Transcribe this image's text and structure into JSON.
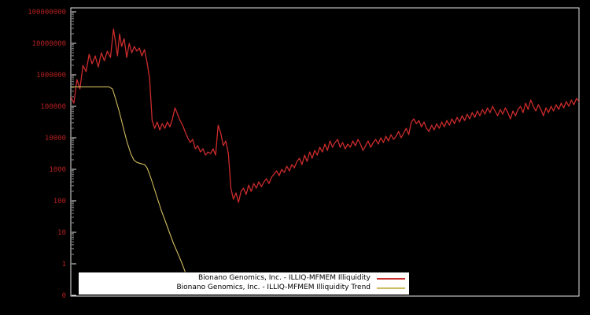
{
  "window": {
    "background": "#000000"
  },
  "legend": {
    "background": "#ffffff",
    "text_color": "#000000",
    "items": [
      {
        "label": "Bionano Genomics, Inc. - ILLIQ-MFMEM Illiquidity",
        "color": "#cc2b2b"
      },
      {
        "label": "Bionano Genomics, Inc. - ILLIQ-MFMEM Illiquidity Trend",
        "color": "#cfbc5e"
      }
    ]
  },
  "chart_data": {
    "type": "line",
    "title": "",
    "xlabel": "",
    "ylabel": "",
    "y_scale": "log10",
    "grid": false,
    "border_color": "#e8e8e8",
    "y_axis": {
      "label_color": "#b42020",
      "ticks": [
        {
          "label": "100000000",
          "log": 8
        },
        {
          "label": "10000000",
          "log": 7
        },
        {
          "label": "1000000",
          "log": 6
        },
        {
          "label": "100000",
          "log": 5
        },
        {
          "label": "10000",
          "log": 4
        },
        {
          "label": "1000",
          "log": 3
        },
        {
          "label": "100",
          "log": 2
        },
        {
          "label": "10",
          "log": 1
        },
        {
          "label": "1",
          "log": 0
        },
        {
          "label": "0",
          "log": null
        }
      ]
    },
    "x_axis": {
      "ticks": []
    },
    "series": [
      {
        "name": "Bionano Genomics, Inc. - ILLIQ-MFMEM Illiquidity",
        "color": "#cc2b2b",
        "width": 1.3,
        "points_xfrac_log10y": [
          [
            0.0,
            5.3
          ],
          [
            0.006,
            5.1
          ],
          [
            0.012,
            5.85
          ],
          [
            0.018,
            5.55
          ],
          [
            0.024,
            6.3
          ],
          [
            0.03,
            6.1
          ],
          [
            0.036,
            6.65
          ],
          [
            0.042,
            6.35
          ],
          [
            0.048,
            6.6
          ],
          [
            0.054,
            6.25
          ],
          [
            0.06,
            6.7
          ],
          [
            0.066,
            6.45
          ],
          [
            0.072,
            6.75
          ],
          [
            0.078,
            6.55
          ],
          [
            0.084,
            7.45
          ],
          [
            0.088,
            7.05
          ],
          [
            0.092,
            6.6
          ],
          [
            0.096,
            7.3
          ],
          [
            0.1,
            6.9
          ],
          [
            0.105,
            7.15
          ],
          [
            0.11,
            6.55
          ],
          [
            0.115,
            7.0
          ],
          [
            0.12,
            6.7
          ],
          [
            0.125,
            6.9
          ],
          [
            0.13,
            6.75
          ],
          [
            0.135,
            6.85
          ],
          [
            0.14,
            6.6
          ],
          [
            0.145,
            6.8
          ],
          [
            0.15,
            6.4
          ],
          [
            0.155,
            5.9
          ],
          [
            0.16,
            4.55
          ],
          [
            0.165,
            4.3
          ],
          [
            0.17,
            4.5
          ],
          [
            0.175,
            4.25
          ],
          [
            0.18,
            4.45
          ],
          [
            0.185,
            4.3
          ],
          [
            0.19,
            4.5
          ],
          [
            0.195,
            4.35
          ],
          [
            0.2,
            4.6
          ],
          [
            0.205,
            4.95
          ],
          [
            0.21,
            4.75
          ],
          [
            0.215,
            4.55
          ],
          [
            0.22,
            4.4
          ],
          [
            0.225,
            4.2
          ],
          [
            0.23,
            4.0
          ],
          [
            0.235,
            3.85
          ],
          [
            0.24,
            3.95
          ],
          [
            0.245,
            3.65
          ],
          [
            0.25,
            3.75
          ],
          [
            0.255,
            3.55
          ],
          [
            0.26,
            3.65
          ],
          [
            0.265,
            3.45
          ],
          [
            0.27,
            3.55
          ],
          [
            0.275,
            3.5
          ],
          [
            0.28,
            3.65
          ],
          [
            0.285,
            3.45
          ],
          [
            0.29,
            4.4
          ],
          [
            0.295,
            4.15
          ],
          [
            0.3,
            3.75
          ],
          [
            0.305,
            3.9
          ],
          [
            0.31,
            3.5
          ],
          [
            0.315,
            2.4
          ],
          [
            0.32,
            2.05
          ],
          [
            0.325,
            2.25
          ],
          [
            0.33,
            1.95
          ],
          [
            0.335,
            2.3
          ],
          [
            0.34,
            2.4
          ],
          [
            0.345,
            2.2
          ],
          [
            0.35,
            2.5
          ],
          [
            0.355,
            2.3
          ],
          [
            0.36,
            2.55
          ],
          [
            0.365,
            2.4
          ],
          [
            0.37,
            2.6
          ],
          [
            0.375,
            2.45
          ],
          [
            0.38,
            2.6
          ],
          [
            0.385,
            2.7
          ],
          [
            0.39,
            2.55
          ],
          [
            0.395,
            2.75
          ],
          [
            0.4,
            2.85
          ],
          [
            0.405,
            2.95
          ],
          [
            0.41,
            2.8
          ],
          [
            0.415,
            3.0
          ],
          [
            0.42,
            2.9
          ],
          [
            0.425,
            3.1
          ],
          [
            0.43,
            2.95
          ],
          [
            0.435,
            3.15
          ],
          [
            0.44,
            3.05
          ],
          [
            0.445,
            3.25
          ],
          [
            0.45,
            3.35
          ],
          [
            0.455,
            3.15
          ],
          [
            0.46,
            3.45
          ],
          [
            0.465,
            3.25
          ],
          [
            0.47,
            3.55
          ],
          [
            0.475,
            3.35
          ],
          [
            0.48,
            3.6
          ],
          [
            0.485,
            3.45
          ],
          [
            0.49,
            3.7
          ],
          [
            0.495,
            3.55
          ],
          [
            0.5,
            3.8
          ],
          [
            0.505,
            3.6
          ],
          [
            0.51,
            3.9
          ],
          [
            0.515,
            3.7
          ],
          [
            0.52,
            3.85
          ],
          [
            0.525,
            3.95
          ],
          [
            0.53,
            3.7
          ],
          [
            0.535,
            3.85
          ],
          [
            0.54,
            3.65
          ],
          [
            0.545,
            3.8
          ],
          [
            0.55,
            3.7
          ],
          [
            0.555,
            3.9
          ],
          [
            0.56,
            3.75
          ],
          [
            0.565,
            3.95
          ],
          [
            0.57,
            3.8
          ],
          [
            0.575,
            3.6
          ],
          [
            0.58,
            3.75
          ],
          [
            0.585,
            3.9
          ],
          [
            0.59,
            3.7
          ],
          [
            0.595,
            3.85
          ],
          [
            0.6,
            3.95
          ],
          [
            0.605,
            3.8
          ],
          [
            0.61,
            4.0
          ],
          [
            0.615,
            3.85
          ],
          [
            0.62,
            4.05
          ],
          [
            0.625,
            3.9
          ],
          [
            0.63,
            4.1
          ],
          [
            0.635,
            3.95
          ],
          [
            0.64,
            4.05
          ],
          [
            0.645,
            4.2
          ],
          [
            0.65,
            4.0
          ],
          [
            0.655,
            4.15
          ],
          [
            0.66,
            4.3
          ],
          [
            0.665,
            4.1
          ],
          [
            0.67,
            4.5
          ],
          [
            0.675,
            4.6
          ],
          [
            0.68,
            4.45
          ],
          [
            0.685,
            4.55
          ],
          [
            0.69,
            4.35
          ],
          [
            0.695,
            4.5
          ],
          [
            0.7,
            4.3
          ],
          [
            0.705,
            4.2
          ],
          [
            0.71,
            4.4
          ],
          [
            0.715,
            4.25
          ],
          [
            0.72,
            4.45
          ],
          [
            0.725,
            4.3
          ],
          [
            0.73,
            4.5
          ],
          [
            0.735,
            4.35
          ],
          [
            0.74,
            4.55
          ],
          [
            0.745,
            4.4
          ],
          [
            0.75,
            4.6
          ],
          [
            0.755,
            4.45
          ],
          [
            0.76,
            4.65
          ],
          [
            0.765,
            4.5
          ],
          [
            0.77,
            4.7
          ],
          [
            0.775,
            4.55
          ],
          [
            0.78,
            4.75
          ],
          [
            0.785,
            4.6
          ],
          [
            0.79,
            4.8
          ],
          [
            0.795,
            4.65
          ],
          [
            0.8,
            4.85
          ],
          [
            0.805,
            4.7
          ],
          [
            0.81,
            4.9
          ],
          [
            0.815,
            4.75
          ],
          [
            0.82,
            4.95
          ],
          [
            0.825,
            4.8
          ],
          [
            0.83,
            5.0
          ],
          [
            0.835,
            4.85
          ],
          [
            0.84,
            4.7
          ],
          [
            0.845,
            4.9
          ],
          [
            0.85,
            4.75
          ],
          [
            0.855,
            4.95
          ],
          [
            0.86,
            4.8
          ],
          [
            0.865,
            4.6
          ],
          [
            0.87,
            4.85
          ],
          [
            0.875,
            4.7
          ],
          [
            0.88,
            4.9
          ],
          [
            0.885,
            5.0
          ],
          [
            0.89,
            4.8
          ],
          [
            0.895,
            5.1
          ],
          [
            0.9,
            4.9
          ],
          [
            0.905,
            5.2
          ],
          [
            0.91,
            5.0
          ],
          [
            0.915,
            4.85
          ],
          [
            0.92,
            5.05
          ],
          [
            0.925,
            4.9
          ],
          [
            0.93,
            4.7
          ],
          [
            0.935,
            4.95
          ],
          [
            0.94,
            4.8
          ],
          [
            0.945,
            5.0
          ],
          [
            0.95,
            4.85
          ],
          [
            0.955,
            5.05
          ],
          [
            0.96,
            4.9
          ],
          [
            0.965,
            5.1
          ],
          [
            0.97,
            4.95
          ],
          [
            0.975,
            5.15
          ],
          [
            0.98,
            5.0
          ],
          [
            0.985,
            5.2
          ],
          [
            0.99,
            5.05
          ],
          [
            0.995,
            5.25
          ],
          [
            1.0,
            5.15
          ]
        ]
      },
      {
        "name": "Bionano Genomics, Inc. - ILLIQ-MFMEM Illiquidity Trend",
        "color": "#cfbc5e",
        "width": 1.1,
        "points_xfrac_log10y": [
          [
            0.0,
            5.62
          ],
          [
            0.02,
            5.62
          ],
          [
            0.04,
            5.62
          ],
          [
            0.06,
            5.62
          ],
          [
            0.075,
            5.62
          ],
          [
            0.082,
            5.55
          ],
          [
            0.088,
            5.25
          ],
          [
            0.095,
            4.85
          ],
          [
            0.103,
            4.35
          ],
          [
            0.11,
            3.9
          ],
          [
            0.118,
            3.5
          ],
          [
            0.124,
            3.3
          ],
          [
            0.13,
            3.22
          ],
          [
            0.138,
            3.18
          ],
          [
            0.145,
            3.15
          ],
          [
            0.15,
            3.05
          ],
          [
            0.155,
            2.85
          ],
          [
            0.162,
            2.5
          ],
          [
            0.17,
            2.1
          ],
          [
            0.178,
            1.7
          ],
          [
            0.186,
            1.35
          ],
          [
            0.194,
            1.0
          ],
          [
            0.202,
            0.65
          ],
          [
            0.21,
            0.35
          ],
          [
            0.218,
            0.05
          ],
          [
            0.225,
            -0.25
          ]
        ]
      }
    ]
  }
}
